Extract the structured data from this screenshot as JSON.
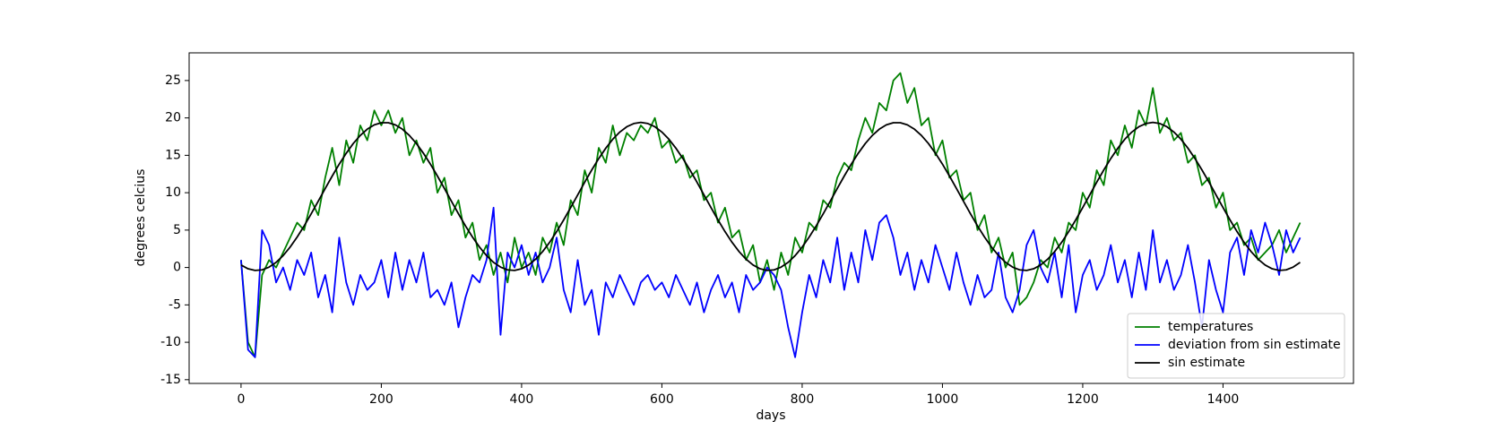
{
  "chart_data": {
    "type": "line",
    "x_label": "days",
    "y_label": "degrees celcius",
    "x": [
      0,
      10,
      20,
      30,
      40,
      50,
      60,
      70,
      80,
      90,
      100,
      110,
      120,
      130,
      140,
      150,
      160,
      170,
      180,
      190,
      200,
      210,
      220,
      230,
      240,
      250,
      260,
      270,
      280,
      290,
      300,
      310,
      320,
      330,
      340,
      350,
      360,
      370,
      380,
      390,
      400,
      410,
      420,
      430,
      440,
      450,
      460,
      470,
      480,
      490,
      500,
      510,
      520,
      530,
      540,
      550,
      560,
      570,
      580,
      590,
      600,
      610,
      620,
      630,
      640,
      650,
      660,
      670,
      680,
      690,
      700,
      710,
      720,
      730,
      740,
      750,
      760,
      770,
      780,
      790,
      800,
      810,
      820,
      830,
      840,
      850,
      860,
      870,
      880,
      890,
      900,
      910,
      920,
      930,
      940,
      950,
      960,
      970,
      980,
      990,
      1000,
      1010,
      1020,
      1030,
      1040,
      1050,
      1060,
      1070,
      1080,
      1090,
      1100,
      1110,
      1120,
      1130,
      1140,
      1150,
      1160,
      1170,
      1180,
      1190,
      1200,
      1210,
      1220,
      1230,
      1240,
      1250,
      1260,
      1270,
      1280,
      1290,
      1300,
      1310,
      1320,
      1330,
      1340,
      1350,
      1360,
      1370,
      1380,
      1390,
      1400,
      1410,
      1420,
      1430,
      1440,
      1450,
      1460,
      1470,
      1480,
      1490,
      1500,
      1510
    ],
    "series": [
      {
        "name": "temperatures",
        "color": "#008000",
        "values": [
          1,
          -10,
          -12,
          -1,
          1,
          0,
          2,
          4,
          6,
          5,
          9,
          7,
          12,
          16,
          11,
          17,
          14,
          19,
          17,
          21,
          19,
          21,
          18,
          20,
          15,
          17,
          14,
          16,
          10,
          12,
          7,
          9,
          4,
          6,
          1,
          3,
          -1,
          2,
          -2,
          4,
          0,
          2,
          -1,
          4,
          2,
          6,
          3,
          9,
          7,
          13,
          10,
          16,
          14,
          19,
          15,
          18,
          17,
          19,
          18,
          20,
          16,
          17,
          14,
          15,
          12,
          13,
          9,
          10,
          6,
          8,
          4,
          5,
          1,
          3,
          -2,
          1,
          -3,
          2,
          -1,
          4,
          2,
          6,
          5,
          9,
          8,
          12,
          14,
          13,
          17,
          20,
          18,
          22,
          21,
          25,
          26,
          22,
          24,
          19,
          20,
          15,
          17,
          12,
          13,
          9,
          10,
          5,
          7,
          2,
          4,
          0,
          2,
          -5,
          -4,
          -2,
          1,
          0,
          4,
          2,
          6,
          5,
          10,
          8,
          13,
          11,
          17,
          15,
          19,
          16,
          21,
          19,
          24,
          18,
          20,
          17,
          18,
          14,
          15,
          11,
          12,
          8,
          10,
          5,
          6,
          3,
          4,
          1,
          2,
          3,
          5,
          2,
          4,
          6
        ]
      },
      {
        "name": "deviation from sin estimate",
        "color": "#0000ff",
        "values": [
          1,
          -11,
          -12,
          5,
          3,
          -2,
          0,
          -3,
          1,
          -1,
          2,
          -4,
          -1,
          -6,
          4,
          -2,
          -5,
          -1,
          -3,
          -2,
          1,
          -4,
          2,
          -3,
          1,
          -2,
          2,
          -4,
          -3,
          -5,
          -2,
          -8,
          -4,
          -1,
          -2,
          1,
          8,
          -9,
          2,
          0,
          3,
          -1,
          2,
          -2,
          0,
          4,
          -3,
          -6,
          1,
          -5,
          -3,
          -9,
          -2,
          -4,
          -1,
          -3,
          -5,
          -2,
          -1,
          -3,
          -2,
          -4,
          -1,
          -3,
          -5,
          -2,
          -6,
          -3,
          -1,
          -4,
          -2,
          -6,
          -1,
          -3,
          -2,
          0,
          -1,
          -3,
          -8,
          -12,
          -6,
          -1,
          -4,
          1,
          -2,
          4,
          -3,
          2,
          -2,
          5,
          1,
          6,
          7,
          4,
          -1,
          2,
          -3,
          1,
          -2,
          3,
          0,
          -3,
          2,
          -2,
          -5,
          -1,
          -4,
          -3,
          2,
          -4,
          -6,
          -3,
          3,
          5,
          0,
          -2,
          2,
          -4,
          3,
          -6,
          -1,
          1,
          -3,
          -1,
          3,
          -2,
          1,
          -4,
          2,
          -3,
          5,
          -2,
          1,
          -3,
          -1,
          3,
          -2,
          -8,
          1,
          -3,
          -6,
          2,
          4,
          -1,
          5,
          2,
          6,
          3,
          -1,
          5,
          2,
          4
        ]
      },
      {
        "name": "sin estimate",
        "color": "#000000",
        "values": [
          0.33,
          -0.17,
          -0.39,
          -0.32,
          0.05,
          0.69,
          1.59,
          2.73,
          4.07,
          5.56,
          7.18,
          8.86,
          10.56,
          12.23,
          13.82,
          15.28,
          16.58,
          17.66,
          18.5,
          19.07,
          19.36,
          19.36,
          19.07,
          18.5,
          17.66,
          16.58,
          15.28,
          13.82,
          12.23,
          10.56,
          8.86,
          7.18,
          5.56,
          4.07,
          2.73,
          1.59,
          0.69,
          0.05,
          -0.32,
          -0.39,
          -0.17,
          0.33,
          1.11,
          2.13,
          3.37,
          4.8,
          6.36,
          8.01,
          9.71,
          11.41,
          13.04,
          14.57,
          15.95,
          17.15,
          18.11,
          18.82,
          19.25,
          19.4,
          19.25,
          18.82,
          18.11,
          17.15,
          15.95,
          14.57,
          13.04,
          11.41,
          9.71,
          8.01,
          6.36,
          4.8,
          3.37,
          2.13,
          1.11,
          0.33,
          -0.17,
          -0.39,
          -0.32,
          0.05,
          0.69,
          1.59,
          2.73,
          4.07,
          5.56,
          7.18,
          8.86,
          10.56,
          12.23,
          13.82,
          15.28,
          16.58,
          17.66,
          18.5,
          19.07,
          19.36,
          19.36,
          19.07,
          18.5,
          17.66,
          16.58,
          15.28,
          13.82,
          12.23,
          10.56,
          8.86,
          7.18,
          5.56,
          4.07,
          2.73,
          1.59,
          0.69,
          0.05,
          -0.32,
          -0.39,
          -0.17,
          0.33,
          1.11,
          2.13,
          3.37,
          4.8,
          6.36,
          8.01,
          9.71,
          11.41,
          13.04,
          14.57,
          15.95,
          17.15,
          18.11,
          18.82,
          19.25,
          19.4,
          19.25,
          18.82,
          18.11,
          17.15,
          15.95,
          14.57,
          13.04,
          11.41,
          9.71,
          8.01,
          6.36,
          4.8,
          3.37,
          2.13,
          1.11,
          0.33,
          -0.17,
          -0.39,
          -0.32,
          0.05,
          0.69
        ]
      }
    ],
    "xlim": [
      -74,
      1586
    ],
    "ylim": [
      -15.5,
      28.7
    ],
    "xticks": [
      0,
      200,
      400,
      600,
      800,
      1000,
      1200,
      1400
    ],
    "yticks": [
      -15,
      -10,
      -5,
      0,
      5,
      10,
      15,
      20,
      25
    ],
    "grid": false,
    "legend": "lower right"
  }
}
